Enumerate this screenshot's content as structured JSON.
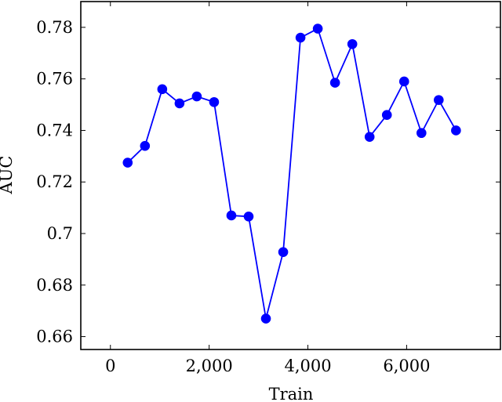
{
  "chart_data": {
    "type": "line",
    "xlabel": "Train",
    "ylabel": "AUC",
    "xlim": [
      -600,
      7900
    ],
    "ylim": [
      0.655,
      0.79
    ],
    "xticks": [
      0,
      2000,
      4000,
      6000
    ],
    "xtick_labels": [
      "0",
      "2,000",
      "4,000",
      "6,000"
    ],
    "yticks": [
      0.66,
      0.68,
      0.7,
      0.72,
      0.74,
      0.76,
      0.78
    ],
    "ytick_labels": [
      "0.66",
      "0.68",
      "0.7",
      "0.72",
      "0.74",
      "0.76",
      "0.78"
    ],
    "grid": false,
    "legend": "none",
    "series": [
      {
        "color": "#0000ff",
        "marker": "circle",
        "x": [
          350,
          700,
          1050,
          1400,
          1750,
          2100,
          2450,
          2800,
          3150,
          3500,
          3850,
          4200,
          4550,
          4900,
          5250,
          5600,
          5950,
          6300,
          6650,
          7000
        ],
        "y": [
          0.7275,
          0.734,
          0.756,
          0.7505,
          0.7532,
          0.751,
          0.707,
          0.7066,
          0.667,
          0.6928,
          0.776,
          0.7795,
          0.7585,
          0.7735,
          0.7375,
          0.746,
          0.759,
          0.739,
          0.7518,
          0.74
        ]
      }
    ]
  }
}
